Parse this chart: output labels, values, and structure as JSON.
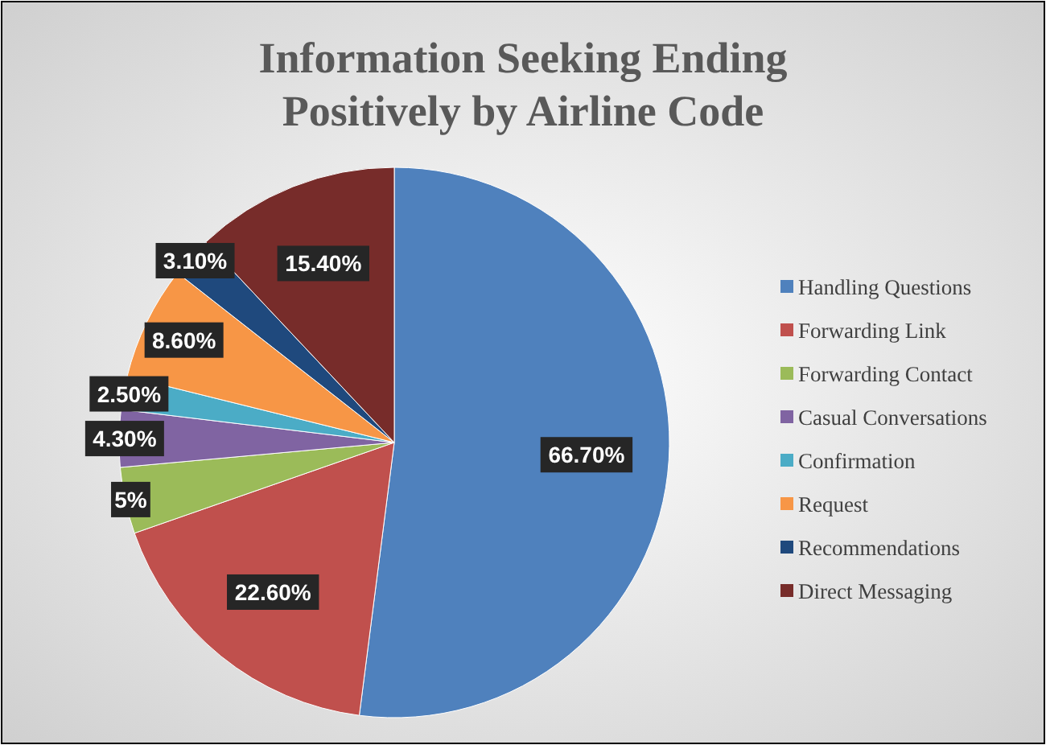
{
  "chart_data": {
    "type": "pie",
    "title": "Information Seeking Ending Positively by Airline Code",
    "categories": [
      "Handling Questions",
      "Forwarding Link",
      "Forwarding Contact",
      "Casual Conversations",
      "Confirmation",
      "Request",
      "Recommendations",
      "Direct Messaging"
    ],
    "values": [
      66.7,
      22.6,
      5,
      4.3,
      2.5,
      8.6,
      3.1,
      15.4
    ],
    "value_labels": [
      "66.70%",
      "22.60%",
      "5%",
      "4.30%",
      "2.50%",
      "8.60%",
      "3.10%",
      "15.40%"
    ],
    "colors": [
      "#4f81bd",
      "#c0504d",
      "#9bbb59",
      "#8064a2",
      "#4bacc6",
      "#f79646",
      "#1f497d",
      "#772c2a"
    ],
    "legend": "right"
  }
}
